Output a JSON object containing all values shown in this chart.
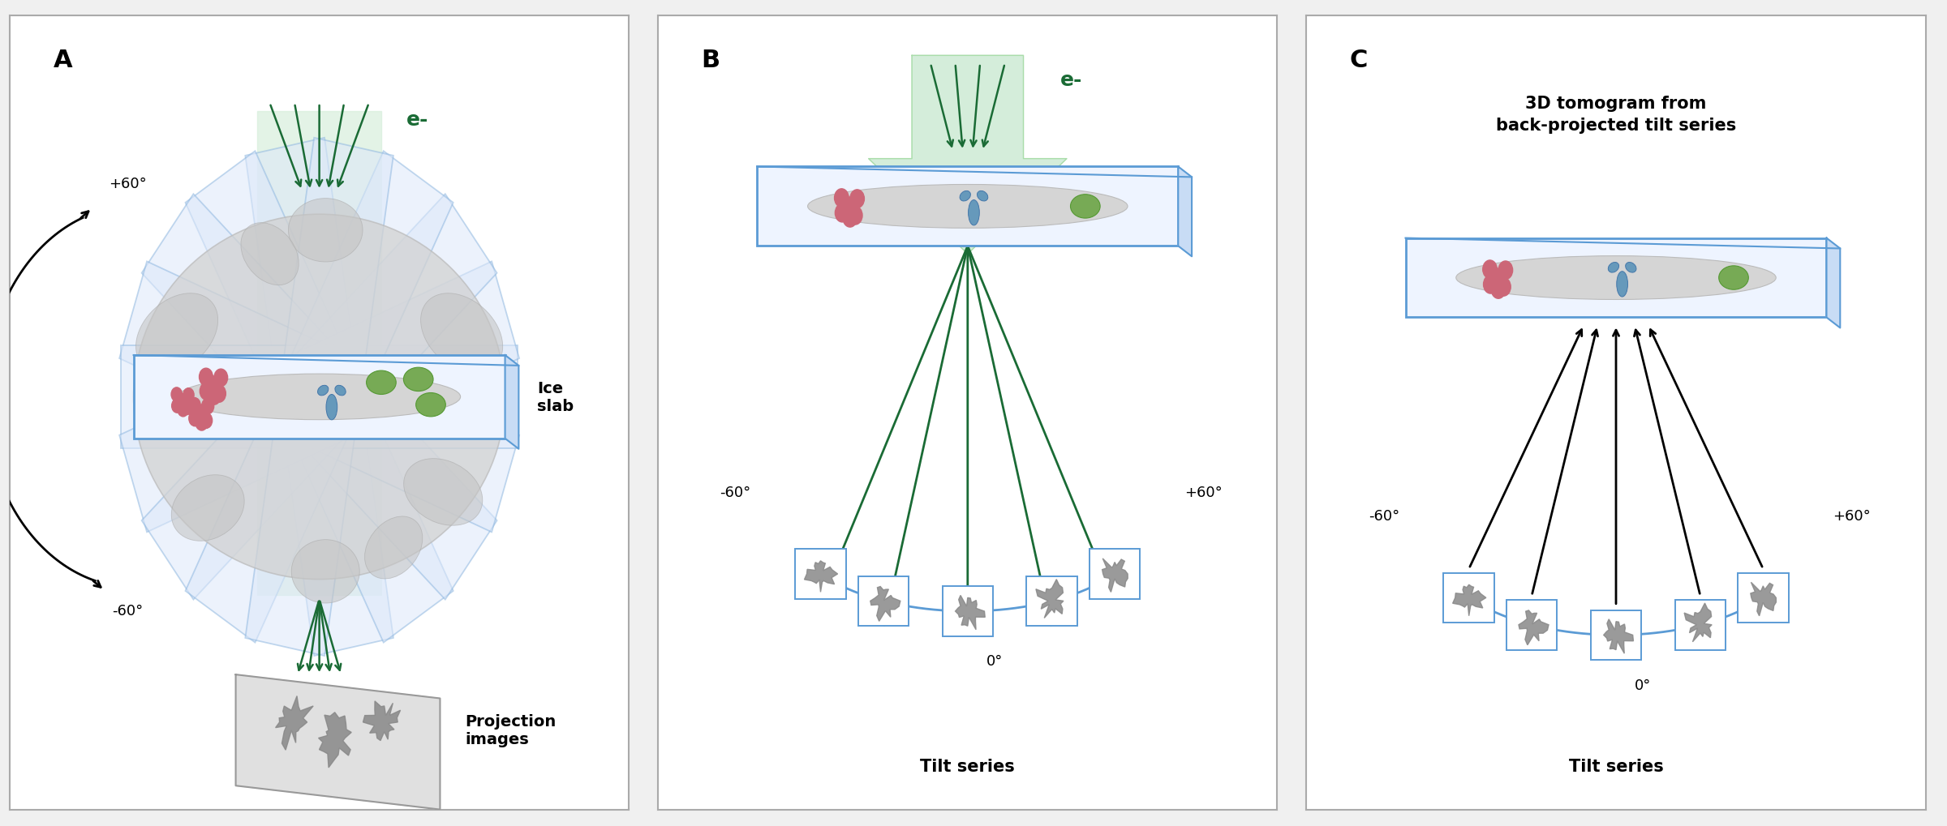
{
  "bg_color": "#f0f0f0",
  "panel_bg": "#ffffff",
  "border_color": "#aaaaaa",
  "panel_A_label": "A",
  "panel_B_label": "B",
  "panel_C_label": "C",
  "green_dark": "#1a6b35",
  "green_arrow_fill": "#d4edda",
  "blue_border": "#5b9bd5",
  "label_fontsize": 22,
  "text_fontsize": 14,
  "annotation_fontsize": 13,
  "red_protein": "#cc6677",
  "green_protein": "#77aa55",
  "blue_protein": "#6699bb"
}
